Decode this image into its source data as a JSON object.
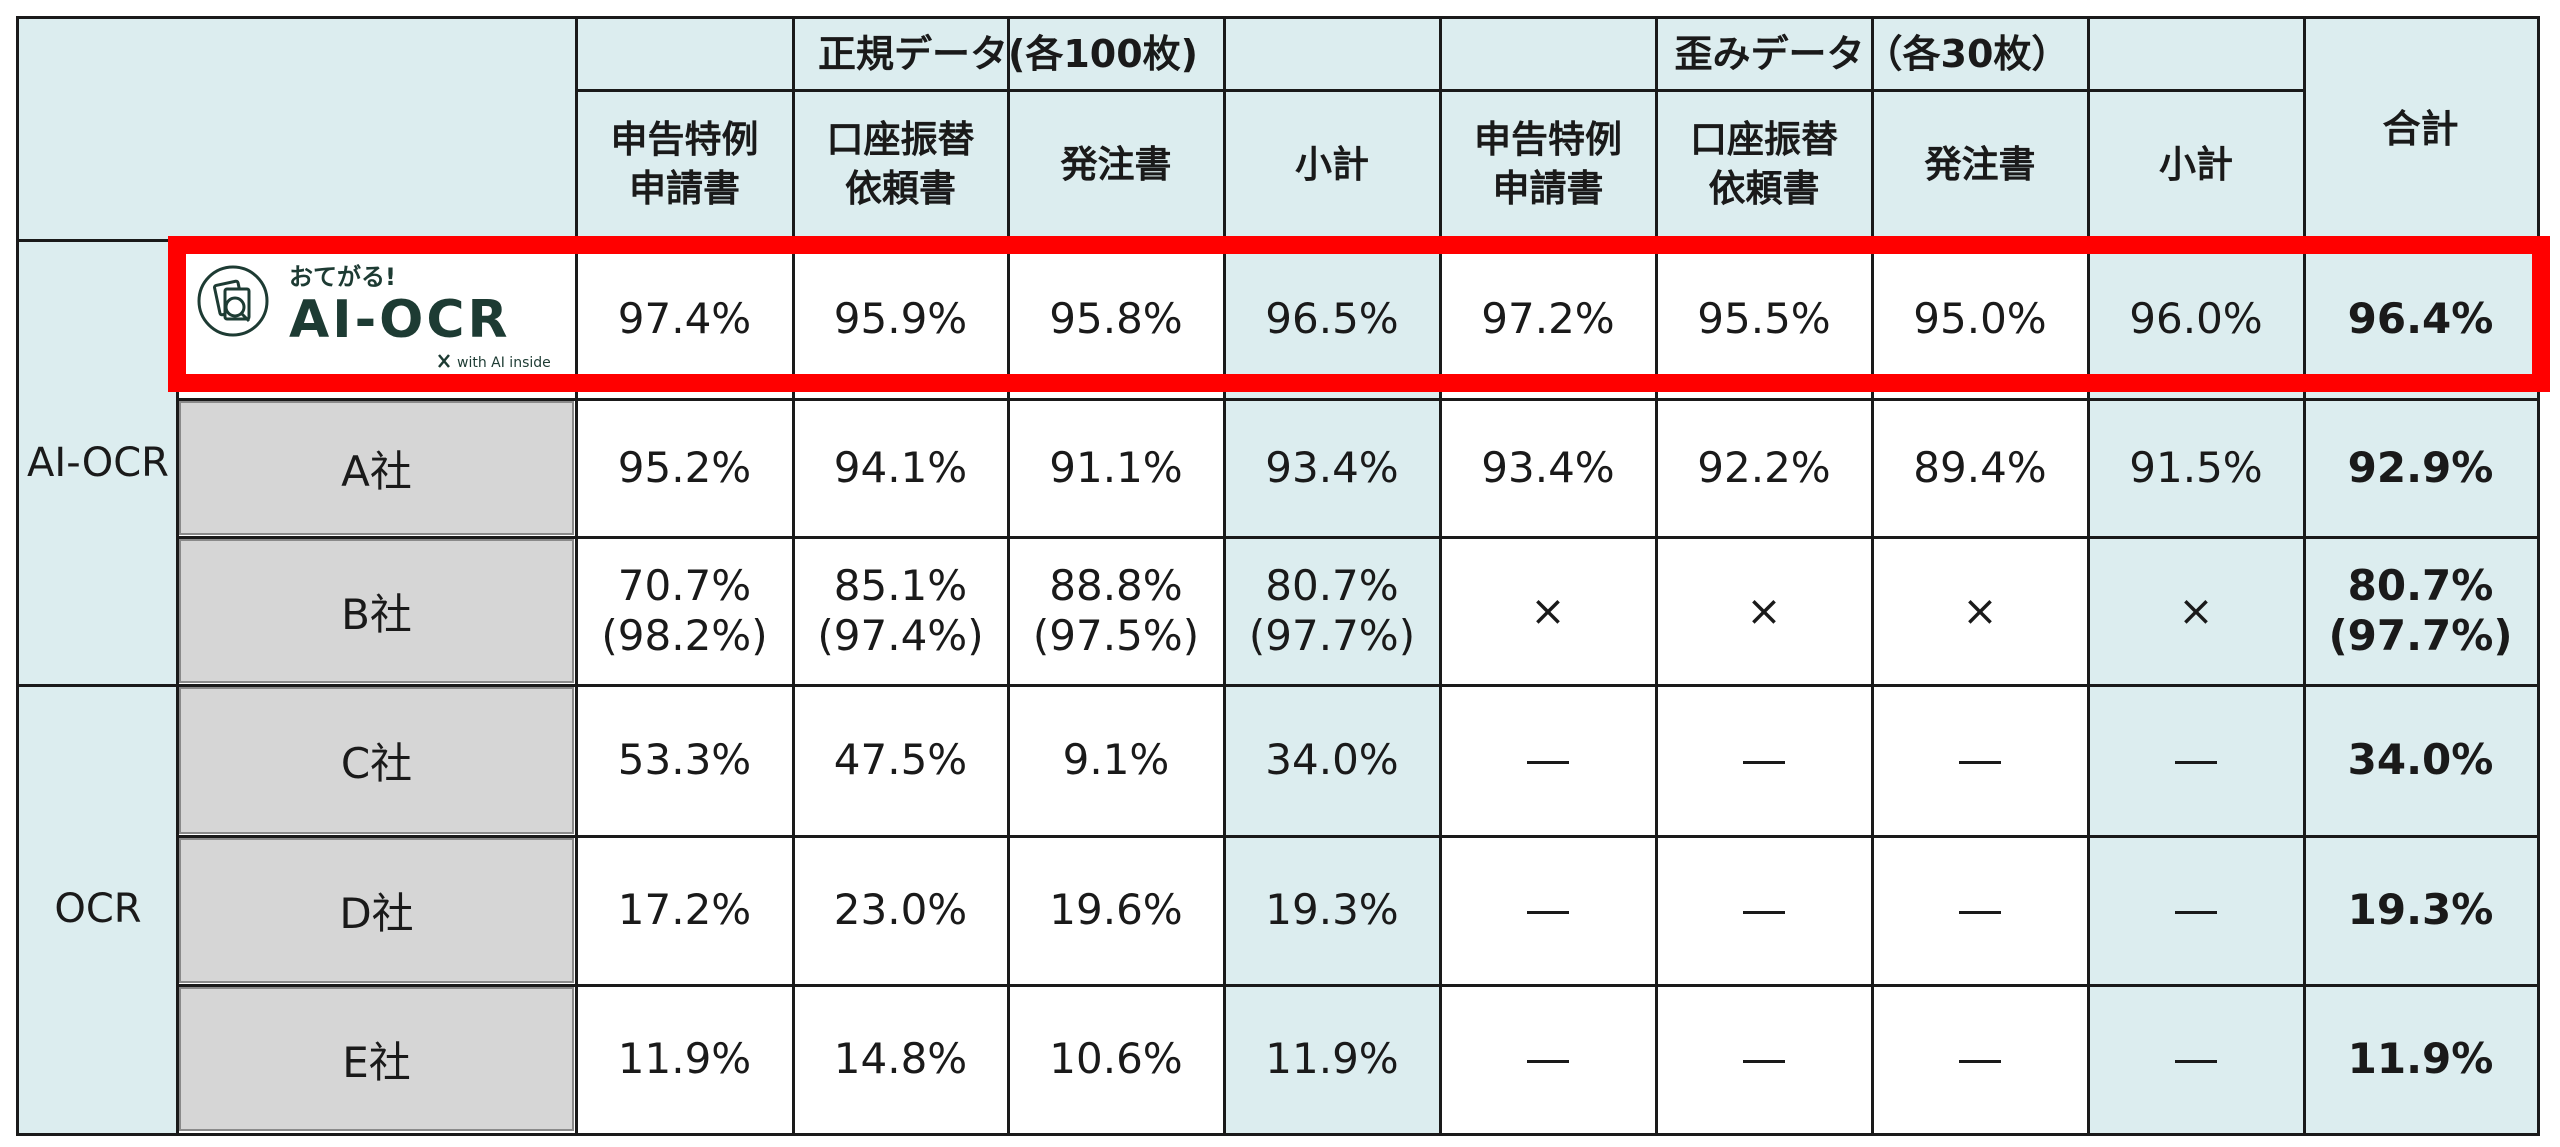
{
  "chart_data": {
    "type": "table",
    "header": {
      "group_regular": "正規データ(各100枚)",
      "group_distorted": "歪みデータ（各30枚）",
      "total": "合計",
      "subcolumns": [
        "申告特例\n申請書",
        "口座振替\n依頼書",
        "発注書",
        "小計",
        "申告特例\n申請書",
        "口座振替\n依頼書",
        "発注書",
        "小計"
      ]
    },
    "categories": [
      {
        "name": "AI-OCR",
        "rows": 3
      },
      {
        "name": "OCR",
        "rows": 3
      }
    ],
    "rows": [
      {
        "company": "",
        "values": [
          "97.4%",
          "95.9%",
          "95.8%",
          "96.5%",
          "97.2%",
          "95.5%",
          "95.0%",
          "96.0%"
        ],
        "total": "96.4%",
        "highlighted": true
      },
      {
        "company": "A社",
        "values": [
          "95.2%",
          "94.1%",
          "91.1%",
          "93.4%",
          "93.4%",
          "92.2%",
          "89.4%",
          "91.5%"
        ],
        "total": "92.9%"
      },
      {
        "company": "B社",
        "values": [
          "70.7%\n(98.2%)",
          "85.1%\n(97.4%)",
          "88.8%\n(97.5%)",
          "80.7%\n(97.7%)",
          "×",
          "×",
          "×",
          "×"
        ],
        "total": "80.7%\n(97.7%)"
      },
      {
        "company": "C社",
        "values": [
          "53.3%",
          "47.5%",
          "9.1%",
          "34.0%",
          "―",
          "―",
          "―",
          "―"
        ],
        "total": "34.0%"
      },
      {
        "company": "D社",
        "values": [
          "17.2%",
          "23.0%",
          "19.6%",
          "19.3%",
          "―",
          "―",
          "―",
          "―"
        ],
        "total": "19.3%"
      },
      {
        "company": "E社",
        "values": [
          "11.9%",
          "14.8%",
          "10.6%",
          "11.9%",
          "―",
          "―",
          "―",
          "―"
        ],
        "total": "11.9%"
      }
    ]
  },
  "logo": {
    "tagline": "おてがる!",
    "name": "AI-OCR",
    "byline": "with AI inside",
    "color": "#1d3b33"
  },
  "colors": {
    "header_bg": "#dcedef",
    "company_bg": "#d6d6d6",
    "highlight": "#ff0000",
    "line": "#1a1a1a"
  }
}
